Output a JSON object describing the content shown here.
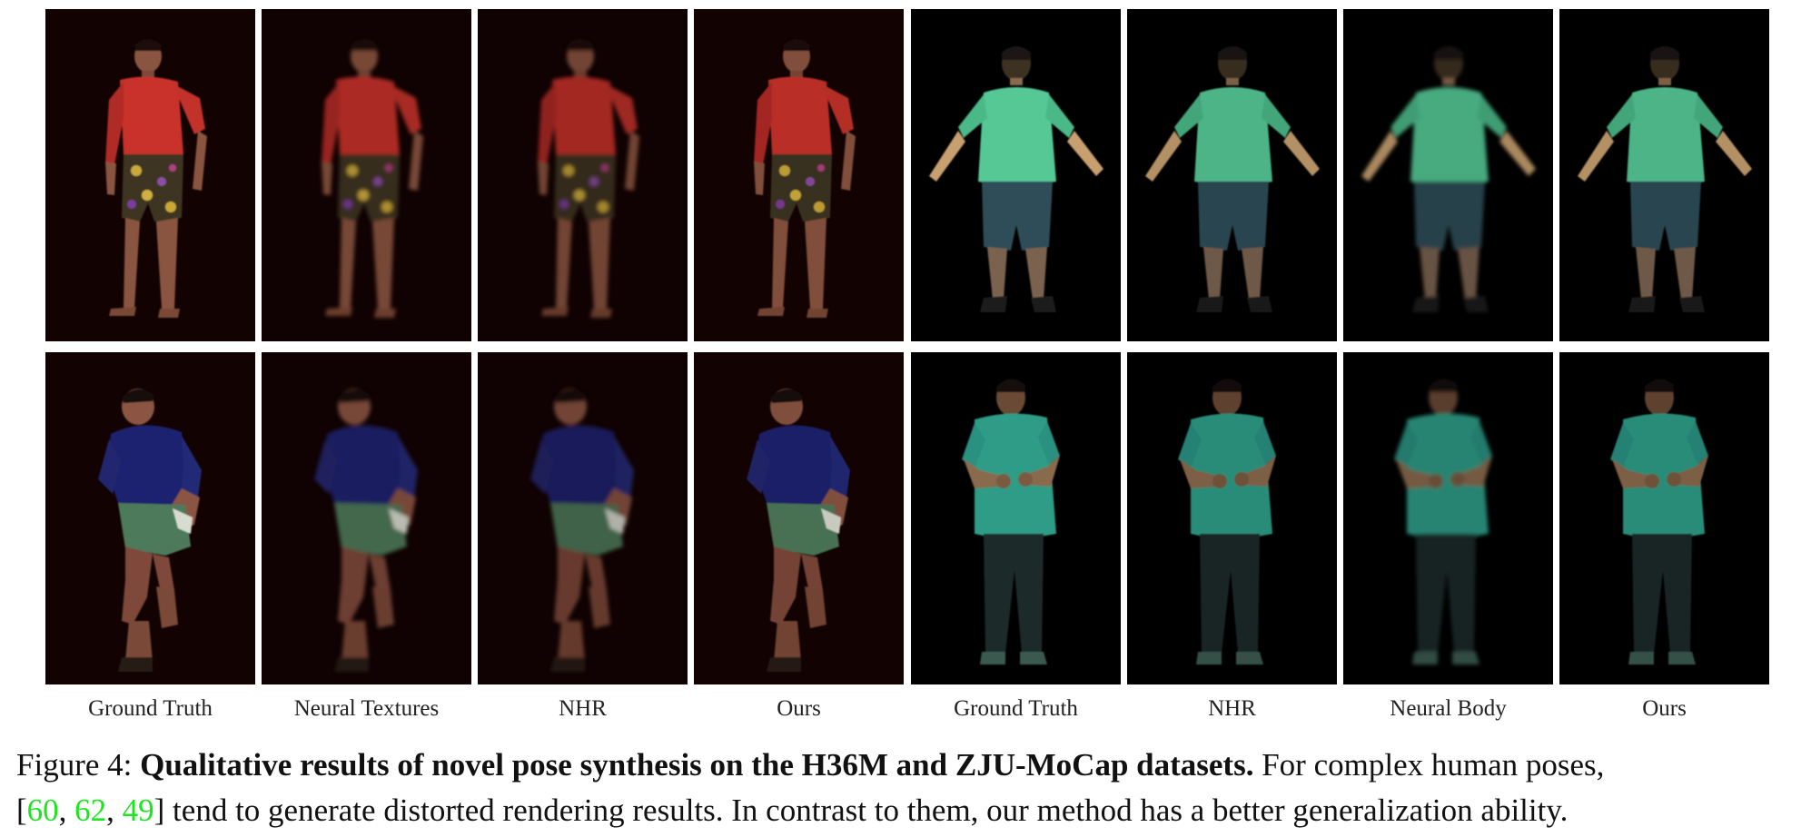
{
  "column_labels": [
    "Ground Truth",
    "Neural Textures",
    "NHR",
    "Ours",
    "Ground Truth",
    "NHR",
    "Neural Body",
    "Ours"
  ],
  "caption": {
    "prefix": "Figure 4: ",
    "bold": "Qualitative results of novel pose synthesis on the H36M and ZJU-MoCap datasets.",
    "text1": " For complex human poses,",
    "open_bracket": "[",
    "cite1": "60",
    "sep1": ", ",
    "cite2": "62",
    "sep2": ", ",
    "cite3": "49",
    "text2": "] tend to generate distorted rendering results. In contrast to them, our method has a better generalization ability."
  },
  "colors": {
    "citation": "#1ee61e",
    "h36m_bg": "#120202",
    "zju_bg": "#000000",
    "red_shirt": "#c8322a",
    "navy_shirt": "#1e2470",
    "green_shirt": "#55c896",
    "teal_shirt": "#2e9c86"
  }
}
